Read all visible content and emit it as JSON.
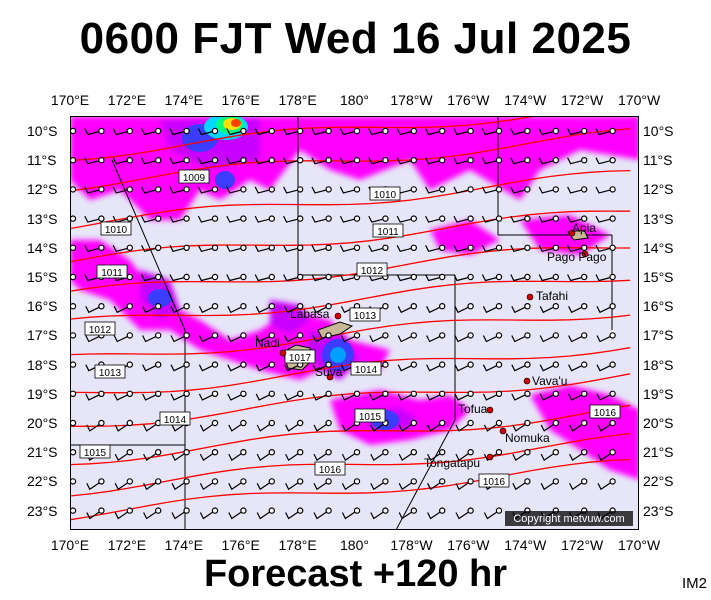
{
  "title": "0600 FJT Wed 16 Jul 2025",
  "footer": "Forecast +120 hr",
  "code": "IM2",
  "copyright": "Copyright metvuw.com",
  "lon_labels": [
    "170°E",
    "172°E",
    "174°E",
    "176°E",
    "178°E",
    "180°",
    "178°W",
    "176°W",
    "174°W",
    "172°W",
    "170°W"
  ],
  "lat_labels": [
    "10°S",
    "11°S",
    "12°S",
    "13°S",
    "14°S",
    "15°S",
    "16°S",
    "17°S",
    "18°S",
    "19°S",
    "20°S",
    "21°S",
    "22°S",
    "23°S"
  ],
  "isobar_labels": [
    "1009",
    "1010",
    "1010",
    "1011",
    "1011",
    "1012",
    "1012",
    "1013",
    "1013",
    "1014",
    "1014",
    "1015",
    "1015",
    "1016",
    "1016",
    "1016",
    "1017"
  ],
  "places": [
    "Apia",
    "Pago Pago",
    "Tafahi",
    "Labasa",
    "Nadi",
    "Suva",
    "Vava'u",
    "Tofua",
    "Nomuka",
    "Tongatapu"
  ],
  "colors": {
    "background": "#e6e6f8",
    "rain_light": "#ff00ff",
    "rain_medium": "#c800ff",
    "rain_heavy": "#3c3cff",
    "rain_extreme": "#ffe000",
    "isobar": "#ff0000",
    "land": "#c8b896"
  }
}
